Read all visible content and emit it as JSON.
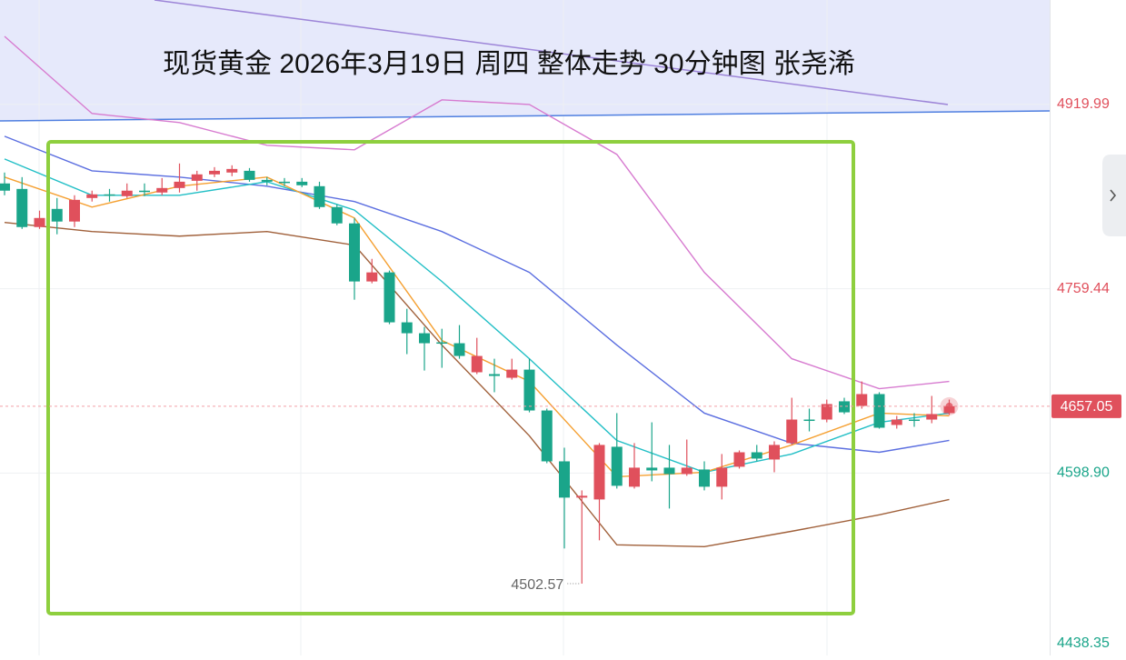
{
  "chart_data": {
    "type": "candlestick",
    "title": "现货黄金 2026年3月19日 周四 整体走势 30分钟图 张尧浠",
    "up_color": "#e0505c",
    "down_color": "#1aa58a",
    "open": [
      4851.2,
      4846.4,
      4813.2,
      4829.0,
      4818.0,
      4838.5,
      4841.7,
      4840.1,
      4844.9,
      4843.3,
      4847.2,
      4853.5,
      4859.1,
      4860.7,
      4862.2,
      4854.3,
      4852.7,
      4852.7,
      4848.8,
      4830.6,
      4816.4,
      4765.8,
      4773.7,
      4730.2,
      4720.7,
      4712.8,
      4712.0,
      4686.7,
      4685.1,
      4681.9,
      4689.0,
      4653.4,
      4609.1,
      4577.5,
      4575.9,
      4621.8,
      4587.0,
      4603.6,
      4603.6,
      4598.0,
      4602.0,
      4587.0,
      4604.4,
      4617.0,
      4610.7,
      4625.0,
      4645.5,
      4645.5,
      4661.4,
      4657.4,
      4667.7,
      4640.8,
      4645.5,
      4645.5,
      4651.1
    ],
    "high": [
      4860.7,
      4856.7,
      4827.5,
      4838.5,
      4840.9,
      4844.9,
      4846.4,
      4851.2,
      4851.2,
      4855.9,
      4868.6,
      4862.2,
      4865.4,
      4867.0,
      4864.6,
      4856.7,
      4855.9,
      4855.9,
      4852.7,
      4833.0,
      4821.1,
      4785.5,
      4775.3,
      4742.0,
      4726.2,
      4724.6,
      4727.8,
      4716.7,
      4698.5,
      4698.5,
      4698.5,
      4655.0,
      4621.0,
      4583.8,
      4625.0,
      4651.1,
      4625.0,
      4643.1,
      4623.4,
      4628.1,
      4609.1,
      4615.5,
      4618.6,
      4623.4,
      4626.5,
      4664.5,
      4655.0,
      4662.9,
      4664.5,
      4678.7,
      4669.3,
      4648.7,
      4651.1,
      4666.1,
      4662.9
    ],
    "low": [
      4840.9,
      4811.6,
      4811.6,
      4806.9,
      4813.2,
      4835.4,
      4835.4,
      4838.5,
      4840.1,
      4840.9,
      4843.3,
      4844.9,
      4856.7,
      4857.5,
      4852.7,
      4849.6,
      4848.8,
      4848.0,
      4829.0,
      4814.8,
      4749.9,
      4764.2,
      4728.6,
      4702.5,
      4688.2,
      4690.6,
      4698.5,
      4685.1,
      4669.3,
      4680.3,
      4651.8,
      4607.5,
      4533.2,
      4502.57,
      4540.3,
      4585.4,
      4585.4,
      4591.7,
      4568.0,
      4596.5,
      4583.8,
      4575.9,
      4602.8,
      4609.1,
      4599.6,
      4623.4,
      4635.2,
      4643.1,
      4650.3,
      4655.0,
      4637.6,
      4637.6,
      4639.2,
      4642.3,
      4649.5
    ],
    "close": [
      4844.9,
      4813.2,
      4821.1,
      4818.0,
      4836.9,
      4841.7,
      4840.9,
      4844.9,
      4844.1,
      4847.2,
      4852.7,
      4859.1,
      4862.2,
      4863.8,
      4854.3,
      4852.7,
      4851.9,
      4849.6,
      4830.6,
      4816.4,
      4765.8,
      4773.7,
      4730.2,
      4720.7,
      4712.0,
      4712.0,
      4700.9,
      4700.9,
      4683.5,
      4689.0,
      4653.4,
      4609.1,
      4577.5,
      4579.1,
      4623.4,
      4587.8,
      4603.6,
      4601.2,
      4598.0,
      4603.6,
      4587.0,
      4603.6,
      4617.0,
      4611.5,
      4623.4,
      4645.5,
      4644.7,
      4659.0,
      4651.8,
      4667.7,
      4638.4,
      4645.5,
      4645.0,
      4650.3,
      4657.05
    ],
    "lines": [
      {
        "color": "#d77bd0",
        "x": [
          0,
          5,
          10,
          15,
          20,
          25,
          30,
          35,
          40,
          45,
          50,
          54
        ],
        "values": [
          4979.3,
          4912.1,
          4904.2,
          4884.4,
          4880.5,
          4924.0,
          4920.0,
          4876.5,
          4773.7,
          4698.5,
          4672.4,
          4678.7
        ]
      },
      {
        "color": "#5b6ee0",
        "x": [
          0,
          5,
          10,
          15,
          20,
          25,
          30,
          35,
          40,
          45,
          50,
          54
        ],
        "values": [
          4892.3,
          4862.2,
          4856.7,
          4848.8,
          4835.4,
          4809.3,
          4773.7,
          4710.4,
          4651.1,
          4624.9,
          4617.0,
          4627.3
        ]
      },
      {
        "color": "#22bfc6",
        "x": [
          0,
          5,
          10,
          15,
          20,
          25,
          30,
          35,
          40,
          45,
          50,
          54
        ],
        "values": [
          4872.5,
          4840.9,
          4840.9,
          4852.7,
          4828.0,
          4765.8,
          4698.5,
          4627.3,
          4599.6,
          4615.5,
          4643.1,
          4651.1
        ]
      },
      {
        "color": "#f5a031",
        "x": [
          0,
          5,
          10,
          15,
          20,
          25,
          30,
          35,
          40,
          45,
          50,
          54
        ],
        "values": [
          4856.7,
          4830.6,
          4848.8,
          4856.7,
          4821.1,
          4714.4,
          4678.7,
          4595.7,
          4599.6,
          4623.4,
          4651.1,
          4648.7
        ]
      },
      {
        "color": "#a0603a",
        "x": [
          0,
          5,
          10,
          15,
          20,
          25,
          30,
          35,
          40,
          45,
          50,
          54
        ],
        "values": [
          4817.2,
          4809.3,
          4805.3,
          4809.3,
          4797.4,
          4710.4,
          4631.3,
          4536.4,
          4534.8,
          4548.2,
          4562.5,
          4575.9
        ]
      }
    ],
    "annotation": "4502.57",
    "current_price": 4657.05,
    "ylim": [
      4440,
      5011
    ],
    "yticks": [
      4919.99,
      4759.44,
      {
        "value": 4598.9,
        "label": "4598.90"
      },
      4438.35
    ]
  }
}
